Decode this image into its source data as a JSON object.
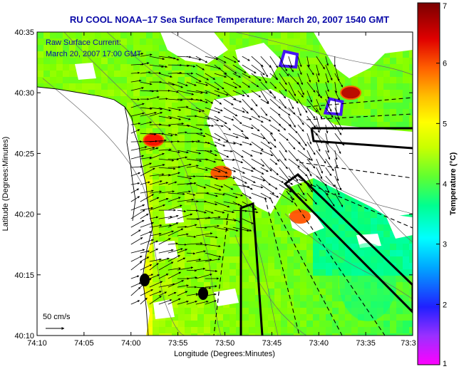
{
  "chart_data": {
    "type": "heatmap",
    "title": "RU COOL  NOAA–17  Sea Surface Temperature:  March 20, 2007 1540 GMT",
    "xlabel": "Longitude (Degrees:Minutes)",
    "ylabel": "Latitude (Degrees:Minutes)",
    "colorbar_label": "Temperature (°C)",
    "x_ticks": [
      "74:10",
      "74:05",
      "74:00",
      "73:55",
      "73:50",
      "73:45",
      "73:40",
      "73:35",
      "73:3"
    ],
    "y_ticks": [
      "40:35",
      "40:30",
      "40:25",
      "40:20",
      "40:15",
      "40:10"
    ],
    "colorbar_ticks": [
      "7",
      "6",
      "5",
      "4",
      "3",
      "2",
      "1"
    ],
    "x_range_deg": [
      -74.1667,
      -73.5
    ],
    "y_range_deg": [
      40.1667,
      40.5833
    ],
    "color_range": [
      1,
      7
    ],
    "colorscale": [
      "#ff00ff",
      "#8a2be2",
      "#0000ff",
      "#00ffff",
      "#00ff80",
      "#80ff00",
      "#ffff00",
      "#ffa500",
      "#ff0000",
      "#8b0000"
    ],
    "annotation": {
      "line1": "Raw Surface Current:",
      "line2": "March 20, 2007 17:00 GMT"
    },
    "scale_label": "50 cm/s",
    "current_vectors": {
      "units": "cm/s",
      "reference": 50,
      "prevailing_flow": "southeast to south-southwest",
      "region_lon": [
        -74.0,
        -73.63
      ],
      "region_lat": [
        40.2,
        40.55
      ]
    },
    "sst_features": [
      {
        "label": "cold patch",
        "lon": -73.72,
        "lat": 40.545,
        "temp": 2.0
      },
      {
        "label": "cold patch",
        "lon": -73.64,
        "lat": 40.48,
        "temp": 2.0
      },
      {
        "label": "warm patch",
        "lon": -73.61,
        "lat": 40.5,
        "temp": 6.7
      },
      {
        "label": "warm patch",
        "lon": -73.96,
        "lat": 40.435,
        "temp": 6.3
      },
      {
        "label": "warm patch",
        "lon": -73.84,
        "lat": 40.39,
        "temp": 6.0
      },
      {
        "label": "warm patch",
        "lon": -73.7,
        "lat": 40.33,
        "temp": 6.0
      },
      {
        "label": "cooler band",
        "lon": -73.58,
        "lat": 40.24,
        "temp": 3.6
      }
    ],
    "grid": false,
    "legend": "none"
  }
}
